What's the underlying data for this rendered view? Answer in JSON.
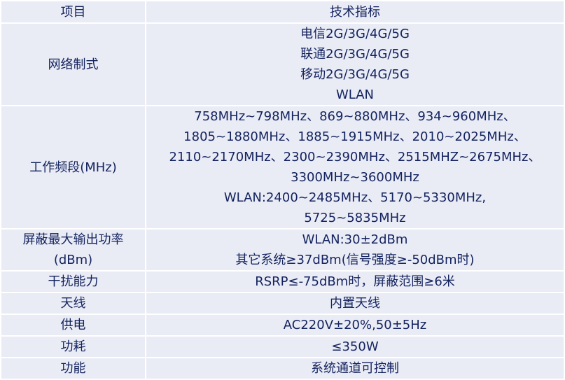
{
  "header": {
    "item": "项目",
    "spec": "技术指标"
  },
  "rows": [
    {
      "item": [
        "网络制式"
      ],
      "spec": [
        "电信2G/3G/4G/5G",
        "联通2G/3G/4G/5G",
        "移动2G/3G/4G/5G",
        "WLAN"
      ]
    },
    {
      "item": [
        "工作频段(MHz)"
      ],
      "spec": [
        "758MHz~798MHz、869~880MHz、934~960MHz、",
        "1805~1880MHz、1885~1915MHz、2010~2025MHz、",
        "2110~2170MHz、2300~2390MHz、2515MHZ~2675MHz、",
        "3300MHz~3600MHz",
        "WLAN:2400~2485MHz、5170~5330MHz,",
        "5725~5835MHz"
      ]
    },
    {
      "item": [
        "屏蔽最大输出功率",
        "(dBm)"
      ],
      "spec": [
        "WLAN:30±2dBm",
        "其它系统≥37dBm(信号强度≥-50dBm时)"
      ]
    },
    {
      "item": [
        "干扰能力"
      ],
      "spec": [
        "RSRP≤-75dBm时，屏蔽范围≥6米"
      ]
    },
    {
      "item": [
        "天线"
      ],
      "spec": [
        "内置天线"
      ]
    },
    {
      "item": [
        "供电"
      ],
      "spec": [
        "AC220V±20%,50±5Hz"
      ]
    },
    {
      "item": [
        "功耗"
      ],
      "spec": [
        "≤350W"
      ]
    },
    {
      "item": [
        "功能"
      ],
      "spec": [
        "系统通道可控制"
      ]
    }
  ]
}
